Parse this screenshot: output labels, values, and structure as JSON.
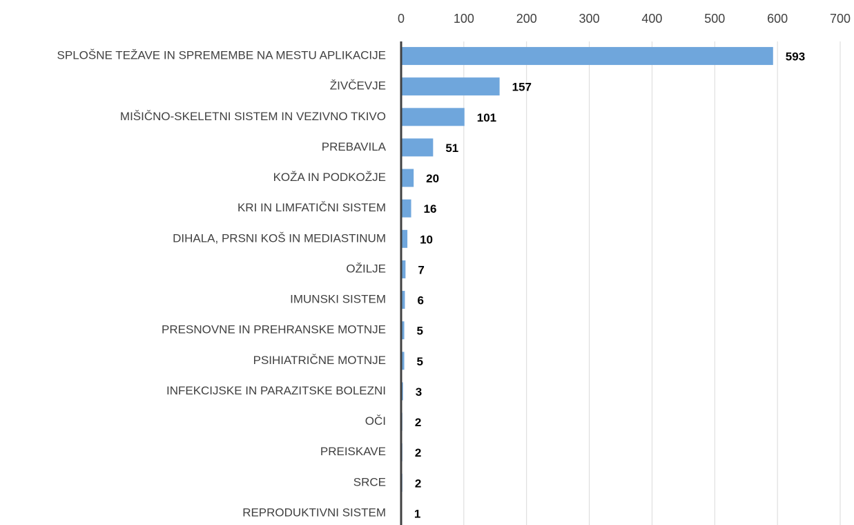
{
  "chart_data": {
    "type": "bar",
    "orientation": "horizontal",
    "categories": [
      "SPLOŠNE TEŽAVE IN SPREMEMBE NA MESTU APLIKACIJE",
      "ŽIVČEVJE",
      "MIŠIČNO-SKELETNI SISTEM IN VEZIVNO TKIVO",
      "PREBAVILA",
      "KOŽA IN PODKOŽJE",
      "KRI IN LIMFATIČNI SISTEM",
      "DIHALA, PRSNI KOŠ IN MEDIASTINUM",
      "OŽILJE",
      "IMUNSKI SISTEM",
      "PRESNOVNE IN PREHRANSKE MOTNJE",
      "PSIHIATRIČNE MOTNJE",
      "INFEKCIJSKE IN PARAZITSKE BOLEZNI",
      "OČI",
      "PREISKAVE",
      "SRCE",
      "REPRODUKTIVNI SISTEM"
    ],
    "values": [
      593,
      157,
      101,
      51,
      20,
      16,
      10,
      7,
      6,
      5,
      5,
      3,
      2,
      2,
      2,
      1
    ],
    "color": "#6fa6dc",
    "xlim": [
      0,
      700
    ],
    "xticks": [
      0,
      100,
      200,
      300,
      400,
      500,
      600,
      700
    ],
    "grid": true
  }
}
